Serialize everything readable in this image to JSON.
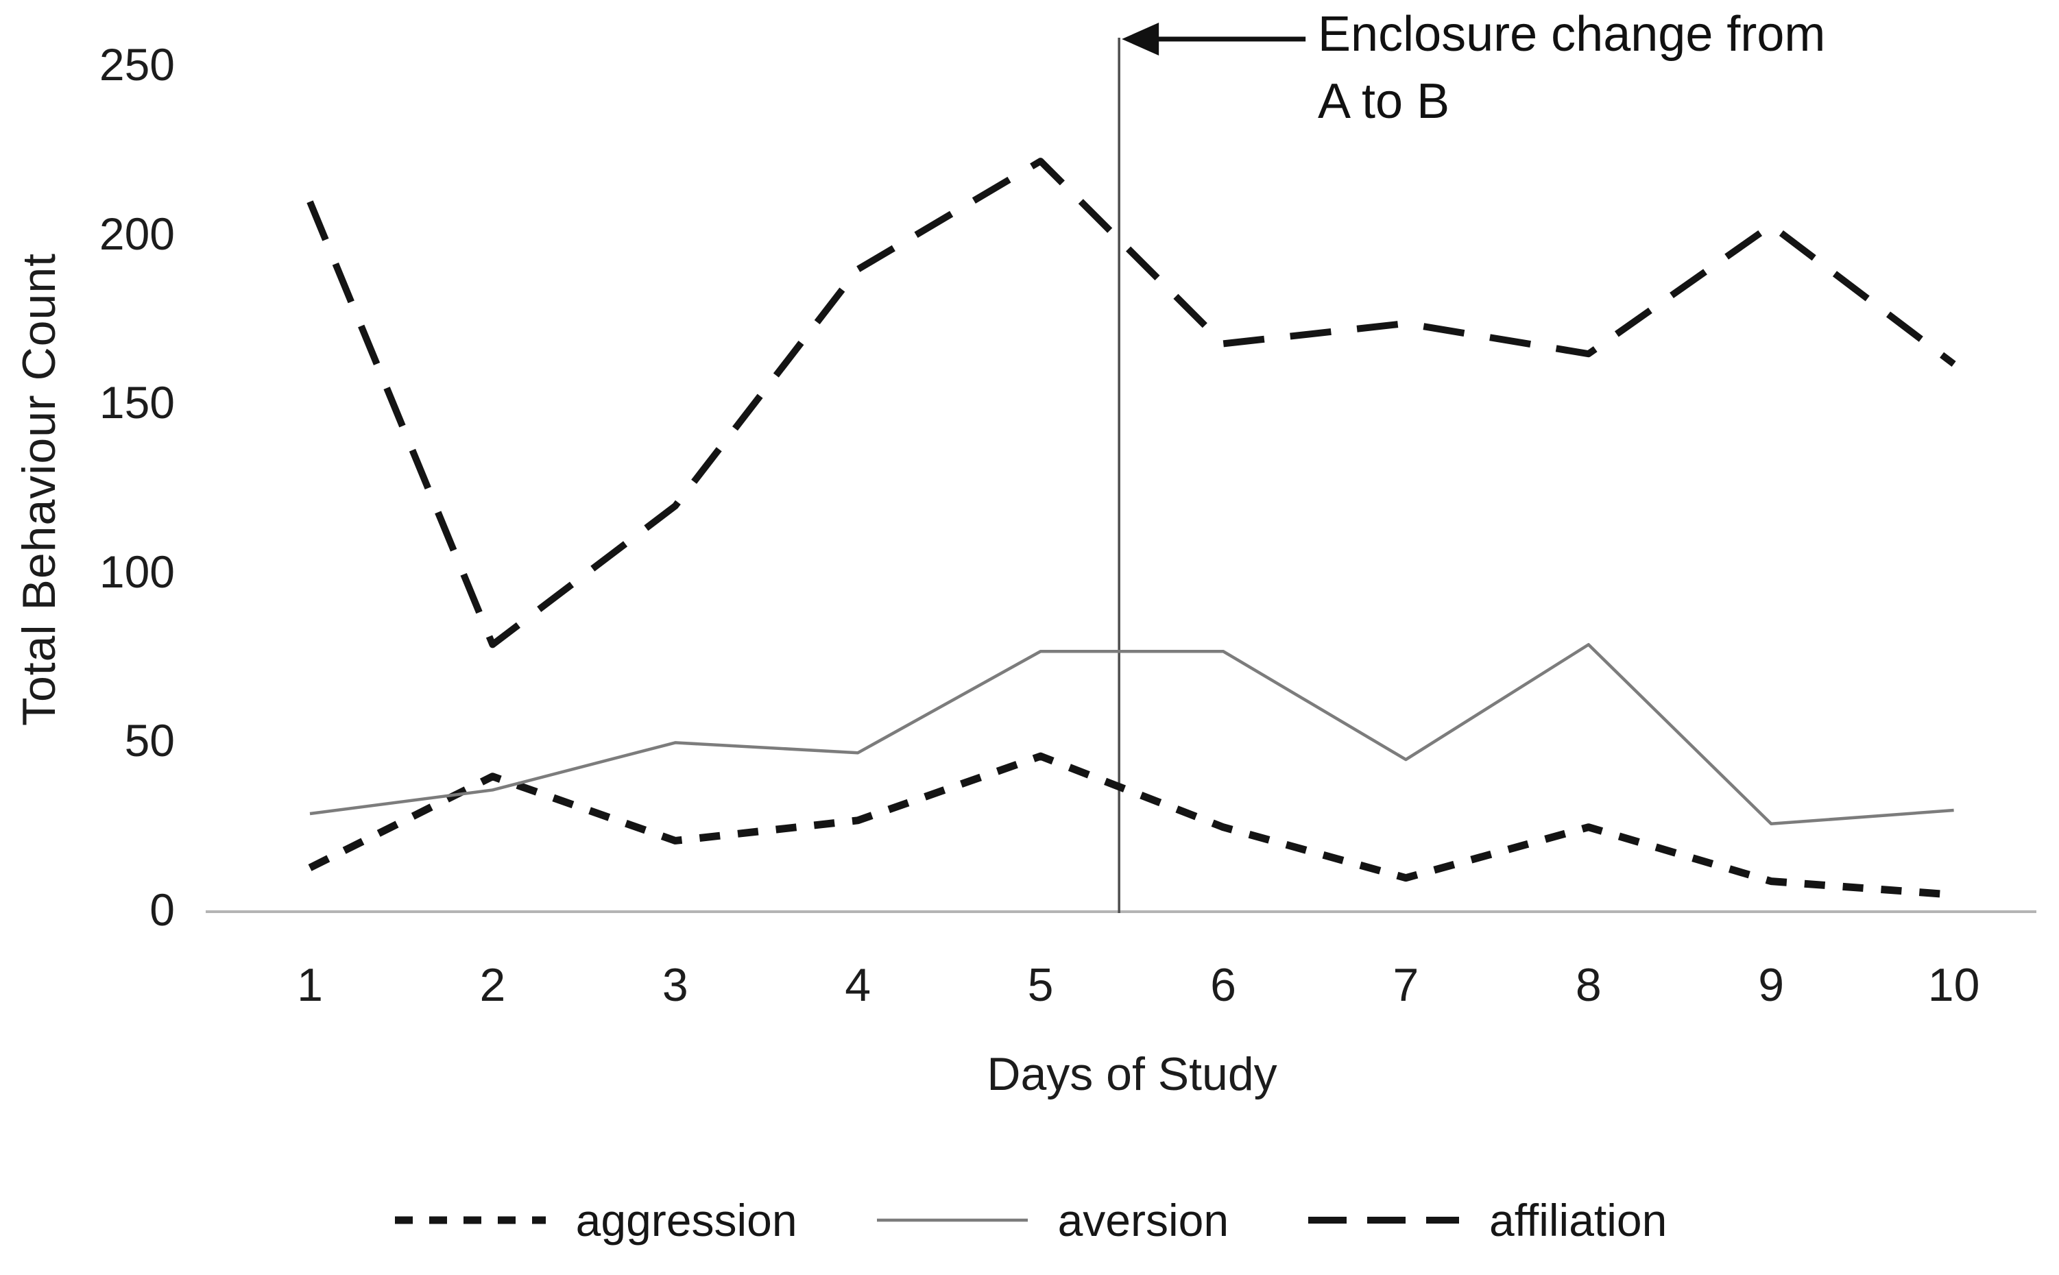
{
  "chart_data": {
    "type": "line",
    "title": "",
    "xlabel": "Days of Study",
    "ylabel": "Total Behaviour Count",
    "x": [
      1,
      2,
      3,
      4,
      5,
      6,
      7,
      8,
      9,
      10
    ],
    "y_ticks": [
      0,
      50,
      100,
      150,
      200,
      250
    ],
    "ylim": [
      0,
      250
    ],
    "grid": false,
    "legend_position": "bottom",
    "series": [
      {
        "name": "aggression",
        "style": "dotted",
        "color": "#141414",
        "values": [
          13,
          40,
          21,
          27,
          46,
          25,
          10,
          25,
          9,
          5
        ]
      },
      {
        "name": "aversion",
        "style": "solid",
        "color": "#7c7c7c",
        "values": [
          29,
          36,
          50,
          47,
          77,
          77,
          45,
          79,
          26,
          30
        ]
      },
      {
        "name": "affiliation",
        "style": "dashed",
        "color": "#141414",
        "values": [
          210,
          79,
          120,
          190,
          222,
          168,
          174,
          165,
          203,
          162
        ]
      }
    ],
    "annotation": {
      "line1": "Enclosure change from",
      "line2": "A to B",
      "event_x_day": 5.43
    },
    "colors": {
      "axis": "#b4b4b4",
      "event_line": "#4f4f4f",
      "text": "#1c1c1c"
    }
  }
}
